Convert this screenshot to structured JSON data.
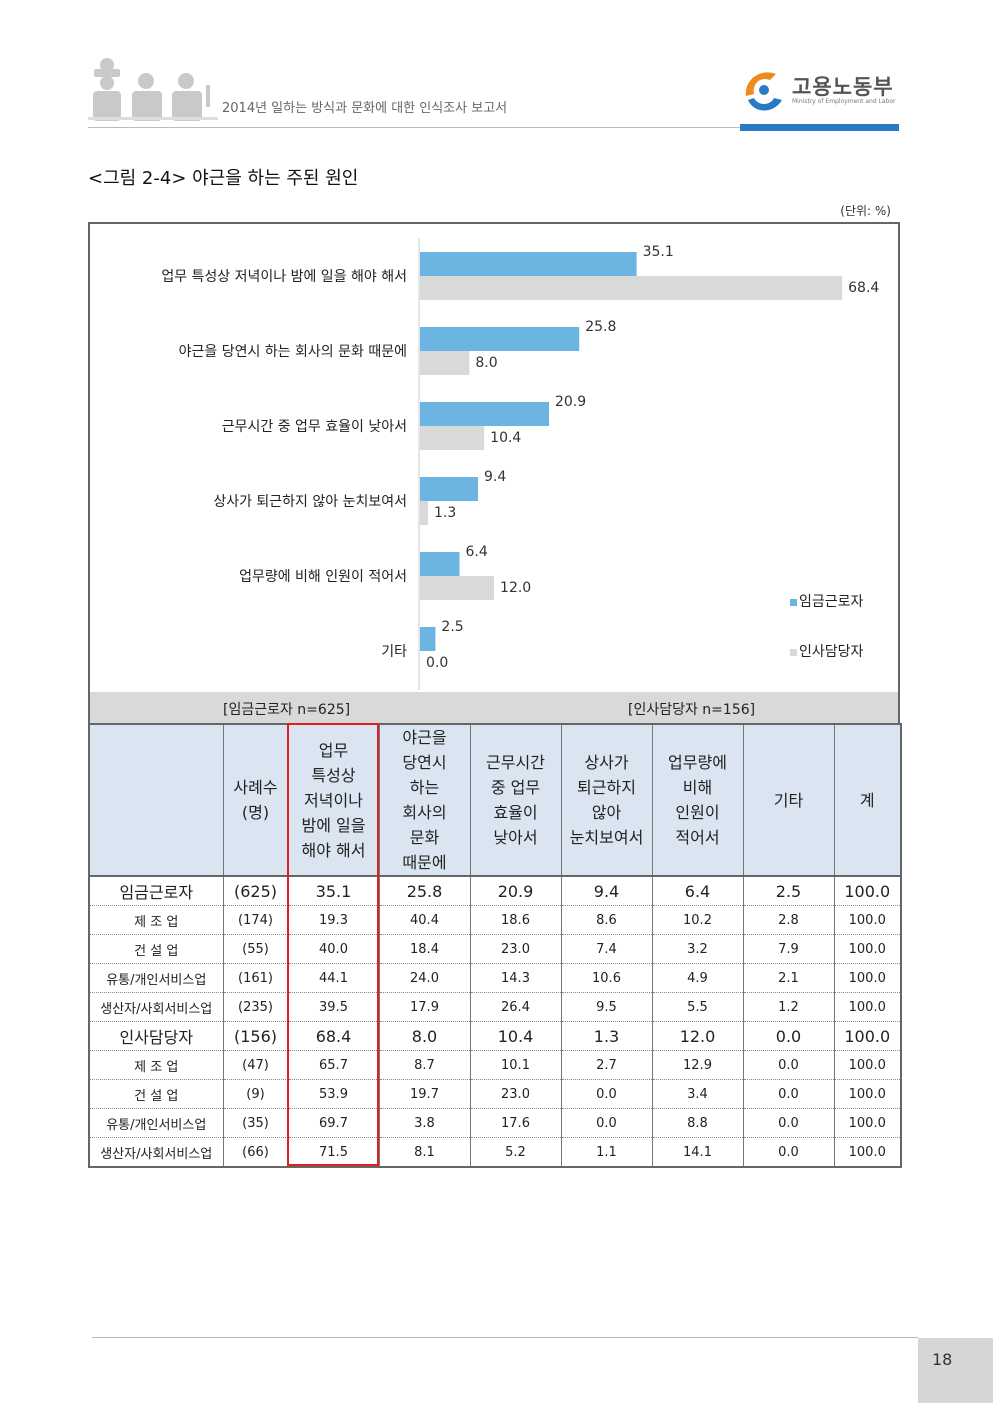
{
  "header": {
    "report_title": "2014년 일하는 방식과 문화에 대한 인식조사 보고서",
    "logo_name": "고용노동부",
    "logo_sub": "Ministry of Employment and Labor"
  },
  "figure": {
    "title": "<그림 2-4> 야근을 하는 주된 원인",
    "unit": "(단위: %)"
  },
  "colors": {
    "series1": "#6cb4e2",
    "series2": "#d9d9d9",
    "table_header": "#dbe5f1",
    "highlight": "#e02020",
    "logo_blue": "#2a79c4"
  },
  "chart_data": {
    "type": "bar",
    "orientation": "horizontal",
    "categories": [
      "업무 특성상 저녁이나 밤에 일을 해야 해서",
      "야근을 당연시 하는 회사의 문화 때문에",
      "근무시간 중 업무 효율이 낮아서",
      "상사가 퇴근하지 않아 눈치보여서",
      "업무량에 비해 인원이 적어서",
      "기타"
    ],
    "series": [
      {
        "name": "임금근로자",
        "values": [
          35.1,
          25.8,
          20.9,
          9.4,
          6.4,
          2.5
        ],
        "labels": [
          "35.1",
          "25.8",
          "20.9",
          "9.4",
          "6.4",
          "2.5"
        ]
      },
      {
        "name": "인사담당자",
        "values": [
          68.4,
          8.0,
          10.4,
          1.3,
          12.0,
          0.0
        ],
        "labels": [
          "68.4",
          "8.0",
          "10.4",
          "1.3",
          "12.0",
          "0.0"
        ]
      }
    ],
    "legend_position": "bottom-right",
    "xlim": [
      0,
      70
    ]
  },
  "table": {
    "band_left": "[임금근로자 n=625]",
    "band_right": "[인사담당자 n=156]",
    "headers": [
      "",
      "사례수\n(명)",
      "업무\n특성상\n저녁이나\n밤에 일을\n해야 해서",
      "야근을\n당연시\n하는\n회사의\n문화\n때문에",
      "근무시간\n중 업무\n효율이\n낮아서",
      "상사가\n퇴근하지\n않아\n눈치보여서",
      "업무량에\n비해\n인원이\n적어서",
      "기타",
      "계"
    ],
    "rows": [
      {
        "bold": true,
        "cells": [
          "임금근로자",
          "(625)",
          "35.1",
          "25.8",
          "20.9",
          "9.4",
          "6.4",
          "2.5",
          "100.0"
        ]
      },
      {
        "bold": false,
        "cells": [
          "제 조 업",
          "(174)",
          "19.3",
          "40.4",
          "18.6",
          "8.6",
          "10.2",
          "2.8",
          "100.0"
        ]
      },
      {
        "bold": false,
        "cells": [
          "건 설 업",
          "(55)",
          "40.0",
          "18.4",
          "23.0",
          "7.4",
          "3.2",
          "7.9",
          "100.0"
        ]
      },
      {
        "bold": false,
        "cells": [
          "유통/개인서비스업",
          "(161)",
          "44.1",
          "24.0",
          "14.3",
          "10.6",
          "4.9",
          "2.1",
          "100.0"
        ]
      },
      {
        "bold": false,
        "cells": [
          "생산자/사회서비스업",
          "(235)",
          "39.5",
          "17.9",
          "26.4",
          "9.5",
          "5.5",
          "1.2",
          "100.0"
        ]
      },
      {
        "bold": true,
        "cells": [
          "인사담당자",
          "(156)",
          "68.4",
          "8.0",
          "10.4",
          "1.3",
          "12.0",
          "0.0",
          "100.0"
        ]
      },
      {
        "bold": false,
        "cells": [
          "제 조 업",
          "(47)",
          "65.7",
          "8.7",
          "10.1",
          "2.7",
          "12.9",
          "0.0",
          "100.0"
        ]
      },
      {
        "bold": false,
        "cells": [
          "건 설 업",
          "(9)",
          "53.9",
          "19.7",
          "23.0",
          "0.0",
          "3.4",
          "0.0",
          "100.0"
        ]
      },
      {
        "bold": false,
        "cells": [
          "유통/개인서비스업",
          "(35)",
          "69.7",
          "3.8",
          "17.6",
          "0.0",
          "8.8",
          "0.0",
          "100.0"
        ]
      },
      {
        "bold": false,
        "cells": [
          "생산자/사회서비스업",
          "(66)",
          "71.5",
          "8.1",
          "5.2",
          "1.1",
          "14.1",
          "0.0",
          "100.0"
        ]
      }
    ]
  },
  "page_number": "18"
}
